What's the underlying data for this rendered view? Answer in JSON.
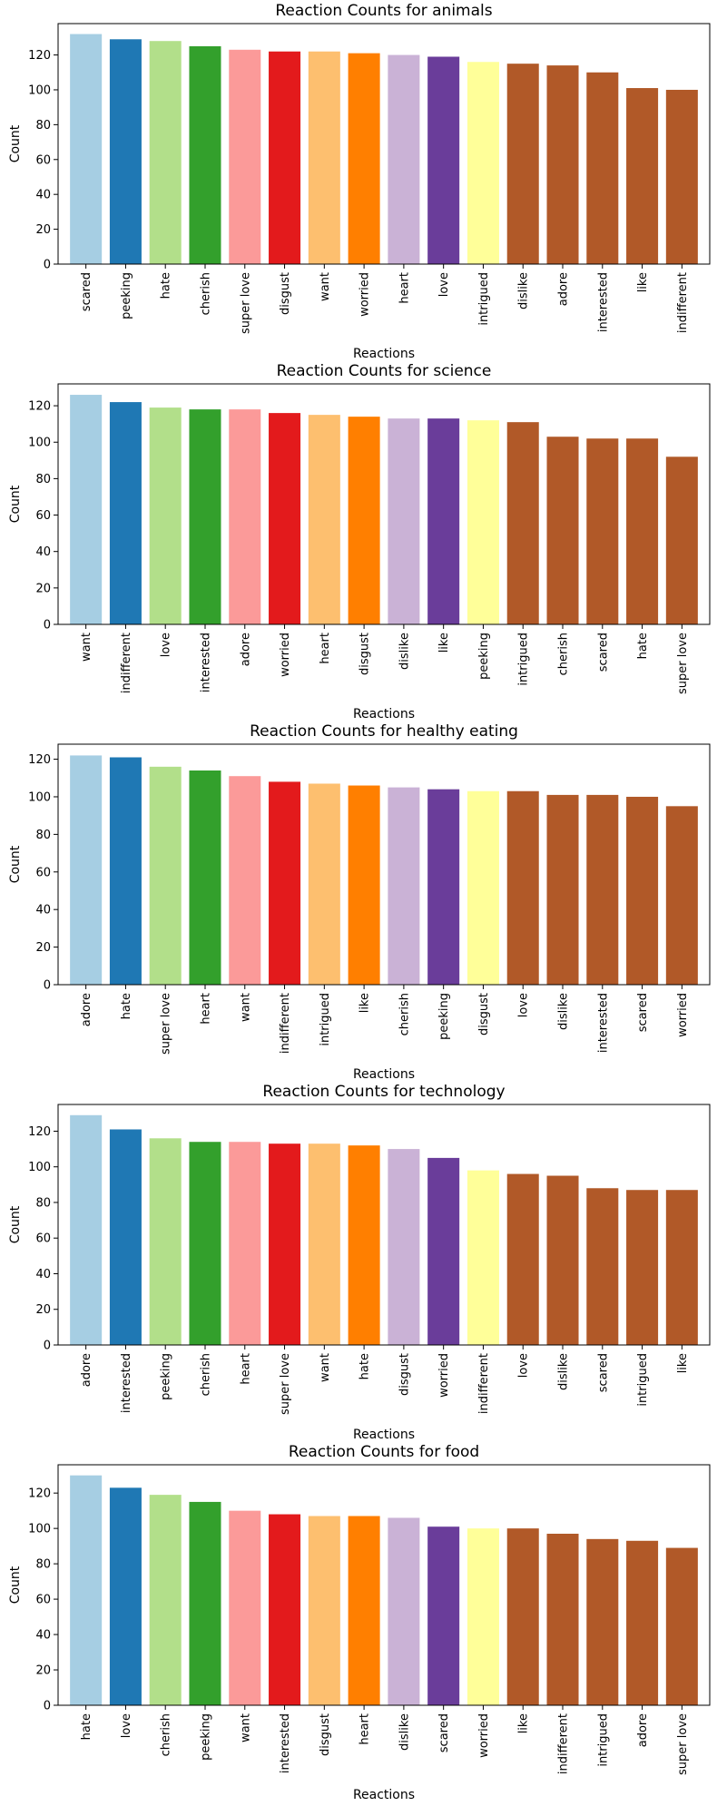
{
  "palette": [
    "#a6cee3",
    "#1f78b4",
    "#b2df8a",
    "#33a02c",
    "#fb9a99",
    "#e31a1c",
    "#fdbf6f",
    "#ff7f00",
    "#cab2d6",
    "#6a3d9a",
    "#ffff99",
    "#b15928",
    "#b15928",
    "#b15928",
    "#b15928",
    "#b15928"
  ],
  "chart_data": [
    {
      "type": "bar",
      "title": "Reaction Counts for animals",
      "xlabel": "Reactions",
      "ylabel": "Count",
      "ylim": [
        0,
        138
      ],
      "yticks": [
        0,
        20,
        40,
        60,
        80,
        100,
        120
      ],
      "grid": false,
      "categories": [
        "scared",
        "peeking",
        "hate",
        "cherish",
        "super love",
        "disgust",
        "want",
        "worried",
        "heart",
        "love",
        "intrigued",
        "dislike",
        "adore",
        "interested",
        "like",
        "indifferent"
      ],
      "values": [
        132,
        129,
        128,
        125,
        123,
        122,
        122,
        121,
        120,
        119,
        116,
        115,
        114,
        110,
        101,
        100
      ]
    },
    {
      "type": "bar",
      "title": "Reaction Counts for science",
      "xlabel": "Reactions",
      "ylabel": "Count",
      "ylim": [
        0,
        132
      ],
      "yticks": [
        0,
        20,
        40,
        60,
        80,
        100,
        120
      ],
      "grid": false,
      "categories": [
        "want",
        "indifferent",
        "love",
        "interested",
        "adore",
        "worried",
        "heart",
        "disgust",
        "dislike",
        "like",
        "peeking",
        "intrigued",
        "cherish",
        "scared",
        "hate",
        "super love"
      ],
      "values": [
        126,
        122,
        119,
        118,
        118,
        116,
        115,
        114,
        113,
        113,
        112,
        111,
        103,
        102,
        102,
        92
      ]
    },
    {
      "type": "bar",
      "title": "Reaction Counts for healthy eating",
      "xlabel": "Reactions",
      "ylabel": "Count",
      "ylim": [
        0,
        128
      ],
      "yticks": [
        0,
        20,
        40,
        60,
        80,
        100,
        120
      ],
      "grid": false,
      "categories": [
        "adore",
        "hate",
        "super love",
        "heart",
        "want",
        "indifferent",
        "intrigued",
        "like",
        "cherish",
        "peeking",
        "disgust",
        "love",
        "dislike",
        "interested",
        "scared",
        "worried"
      ],
      "values": [
        122,
        121,
        116,
        114,
        111,
        108,
        107,
        106,
        105,
        104,
        103,
        103,
        101,
        101,
        100,
        95
      ]
    },
    {
      "type": "bar",
      "title": "Reaction Counts for technology",
      "xlabel": "Reactions",
      "ylabel": "Count",
      "ylim": [
        0,
        135
      ],
      "yticks": [
        0,
        20,
        40,
        60,
        80,
        100,
        120
      ],
      "grid": false,
      "categories": [
        "adore",
        "interested",
        "peeking",
        "cherish",
        "heart",
        "super love",
        "want",
        "hate",
        "disgust",
        "worried",
        "indifferent",
        "love",
        "dislike",
        "scared",
        "intrigued",
        "like"
      ],
      "values": [
        129,
        121,
        116,
        114,
        114,
        113,
        113,
        112,
        110,
        105,
        98,
        96,
        95,
        88,
        87,
        87
      ]
    },
    {
      "type": "bar",
      "title": "Reaction Counts for food",
      "xlabel": "Reactions",
      "ylabel": "Count",
      "ylim": [
        0,
        136
      ],
      "yticks": [
        0,
        20,
        40,
        60,
        80,
        100,
        120
      ],
      "grid": false,
      "categories": [
        "hate",
        "love",
        "cherish",
        "peeking",
        "want",
        "interested",
        "disgust",
        "heart",
        "dislike",
        "scared",
        "worried",
        "like",
        "indifferent",
        "intrigued",
        "adore",
        "super love"
      ],
      "values": [
        130,
        123,
        119,
        115,
        110,
        108,
        107,
        107,
        106,
        101,
        100,
        100,
        97,
        94,
        93,
        89
      ]
    }
  ]
}
